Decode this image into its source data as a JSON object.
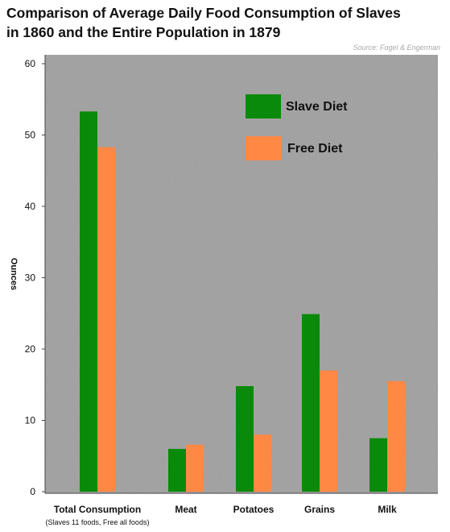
{
  "header": {
    "title_line1": "Comparison of Average Daily Food Consumption of Slaves",
    "title_line2": "in 1860 and the Entire Population in 1879",
    "source": "Source: Fogel & Engerman"
  },
  "chart_data": {
    "type": "bar",
    "title": "Comparison of Average Daily Food Consumption of Slaves in 1860 and the Entire Population in 1879",
    "subtitle": "Source: Fogel & Engerman",
    "xlabel": "",
    "ylabel": "Ounces",
    "ylim": [
      0,
      60
    ],
    "yticks": [
      0,
      10,
      20,
      30,
      40,
      50,
      60
    ],
    "grid": false,
    "legend_position": "top-right",
    "categories": [
      "Total Consumption",
      "Meat",
      "Potatoes",
      "Grains",
      "Milk"
    ],
    "category_notes": [
      "(Slaves 11 foods, Free all foods)",
      "",
      "",
      "",
      ""
    ],
    "series": [
      {
        "name": "Slave Diet",
        "color": "#0a8a0a",
        "values": [
          53.3,
          6.0,
          14.8,
          24.9,
          7.5
        ]
      },
      {
        "name": "Free Diet",
        "color": "#ff8844",
        "values": [
          48.3,
          6.6,
          8.0,
          17.0,
          15.5
        ]
      }
    ],
    "background_color": "#a9a9a9"
  }
}
